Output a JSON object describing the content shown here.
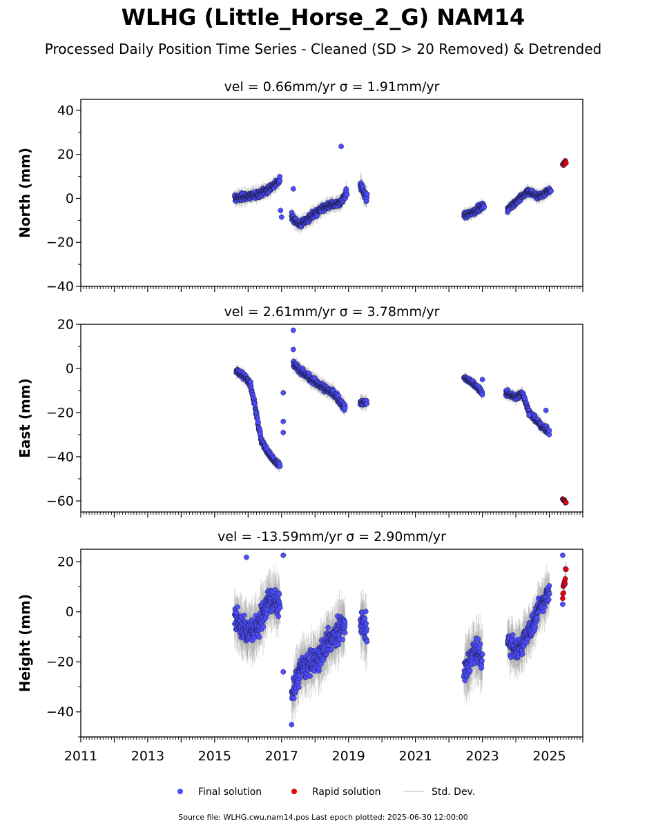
{
  "title": "WLHG (Little_Horse_2_G) NAM14",
  "subtitle": "Processed Daily Position Time Series - Cleaned (SD > 20 Removed) & Detrended",
  "legend": {
    "final": "Final solution",
    "rapid": "Rapid solution",
    "std": "Std. Dev."
  },
  "footer": "Source file: WLHG.cwu.nam14.pos  Last epoch plotted: 2025-06-30 12:00:00",
  "colors": {
    "final": "#4d4dff",
    "rapid": "#e8000b",
    "std": "#9a9a9a"
  },
  "chart_data": [
    {
      "type": "scatter",
      "panel_title": "vel = 0.66mm/yr   σ = 1.91mm/yr",
      "ylabel": "North (mm)",
      "xlim": [
        2011,
        2026
      ],
      "ylim": [
        -40,
        45
      ],
      "yticks": [
        -40,
        -20,
        0,
        20,
        40
      ],
      "xticks": [
        2011,
        2013,
        2015,
        2017,
        2019,
        2021,
        2023,
        2025
      ],
      "x_tick_labels_shown": false,
      "segments": [
        {
          "x": [
            2015.6,
            2016.0,
            2016.3,
            2016.6,
            2016.95
          ],
          "y": [
            0,
            1,
            2,
            4,
            8
          ],
          "noise": 1.5
        },
        {
          "x": [
            2017.3,
            2017.55,
            2017.9,
            2018.3,
            2018.75,
            2018.95
          ],
          "y": [
            -8,
            -12,
            -8,
            -4,
            -2,
            3
          ],
          "noise": 1.5
        },
        {
          "x": [
            2019.35,
            2019.55
          ],
          "y": [
            6,
            0
          ],
          "noise": 2
        },
        {
          "x": [
            2022.45,
            2022.75,
            2023.05
          ],
          "y": [
            -8,
            -6,
            -3
          ],
          "noise": 1.2
        },
        {
          "x": [
            2023.75,
            2024.05,
            2024.35,
            2024.7,
            2025.05
          ],
          "y": [
            -5,
            -1,
            3,
            1,
            4
          ],
          "noise": 1.2
        }
      ],
      "outliers": [
        {
          "x": 2018.78,
          "y": 23.6
        },
        {
          "x": 2017.35,
          "y": 4.3
        },
        {
          "x": 2017.0,
          "y": -8.5
        },
        {
          "x": 2016.97,
          "y": -5.5
        }
      ],
      "rapid": {
        "x": [
          2025.4,
          2025.5
        ],
        "y": [
          15.5,
          16.8
        ],
        "noise": 0.8
      }
    },
    {
      "type": "scatter",
      "panel_title": "vel = 2.61mm/yr   σ = 3.78mm/yr",
      "ylabel": "East (mm)",
      "xlim": [
        2011,
        2026
      ],
      "ylim": [
        -65,
        20
      ],
      "yticks": [
        -60,
        -40,
        -20,
        0,
        20
      ],
      "xticks": [
        2011,
        2013,
        2015,
        2017,
        2019,
        2021,
        2023,
        2025
      ],
      "x_tick_labels_shown": false,
      "segments": [
        {
          "x": [
            2015.65,
            2015.9,
            2016.05,
            2016.2,
            2016.4,
            2016.7,
            2016.95
          ],
          "y": [
            -1,
            -4,
            -6,
            -17,
            -33,
            -40,
            -44
          ],
          "noise": 1.2
        },
        {
          "x": [
            2017.35,
            2017.5,
            2017.8,
            2018.2,
            2018.6,
            2018.9
          ],
          "y": [
            2,
            0,
            -4,
            -8,
            -12,
            -18
          ],
          "noise": 1.5
        },
        {
          "x": [
            2019.35,
            2019.55
          ],
          "y": [
            -15,
            -16
          ],
          "noise": 1.5
        },
        {
          "x": [
            2022.45,
            2022.75,
            2023.0
          ],
          "y": [
            -4,
            -7,
            -11
          ],
          "noise": 1.0
        },
        {
          "x": [
            2023.7,
            2024.0,
            2024.2,
            2024.4,
            2024.7,
            2025.0
          ],
          "y": [
            -11,
            -13,
            -11,
            -20,
            -25,
            -29
          ],
          "noise": 1.2
        }
      ],
      "outliers": [
        {
          "x": 2017.35,
          "y": 17.3
        },
        {
          "x": 2017.35,
          "y": 8.6
        },
        {
          "x": 2017.05,
          "y": -11
        },
        {
          "x": 2017.05,
          "y": -24
        },
        {
          "x": 2017.05,
          "y": -29
        },
        {
          "x": 2024.9,
          "y": -19
        },
        {
          "x": 2024.4,
          "y": -21
        },
        {
          "x": 2023.0,
          "y": -5
        }
      ],
      "rapid": {
        "x": [
          2025.4,
          2025.5
        ],
        "y": [
          -59,
          -61
        ],
        "noise": 0.8
      }
    },
    {
      "type": "scatter",
      "panel_title": "vel = -13.59mm/yr   σ = 2.90mm/yr",
      "ylabel": "Height (mm)",
      "xlim": [
        2011,
        2026
      ],
      "ylim": [
        -50,
        25
      ],
      "yticks": [
        -40,
        -20,
        0,
        20
      ],
      "xticks": [
        2011,
        2013,
        2015,
        2017,
        2019,
        2021,
        2023,
        2025
      ],
      "x_tick_labels_shown": true,
      "segments": [
        {
          "x": [
            2015.6,
            2016.0,
            2016.3,
            2016.6,
            2016.95
          ],
          "y": [
            -3,
            -8,
            -6,
            5,
            3
          ],
          "noise": 4.5
        },
        {
          "x": [
            2017.3,
            2017.6,
            2018.0,
            2018.4,
            2018.9
          ],
          "y": [
            -33,
            -22,
            -20,
            -12,
            -5
          ],
          "noise": 4.5
        },
        {
          "x": [
            2019.35,
            2019.55
          ],
          "y": [
            -3,
            -6
          ],
          "noise": 5
        },
        {
          "x": [
            2022.45,
            2022.75,
            2023.0
          ],
          "y": [
            -25,
            -15,
            -18
          ],
          "noise": 5
        },
        {
          "x": [
            2023.75,
            2024.05,
            2024.4,
            2024.7,
            2025.0
          ],
          "y": [
            -12,
            -15,
            -8,
            2,
            8
          ],
          "noise": 4
        }
      ],
      "outliers": [
        {
          "x": 2015.95,
          "y": 21.8
        },
        {
          "x": 2017.05,
          "y": 22.6
        },
        {
          "x": 2017.3,
          "y": -45.1
        },
        {
          "x": 2017.05,
          "y": -24
        },
        {
          "x": 2025.4,
          "y": 22.6
        },
        {
          "x": 2025.4,
          "y": 3
        }
      ],
      "rapid": {
        "x": [
          2025.4,
          2025.5
        ],
        "y": [
          7,
          17
        ],
        "noise": 3
      }
    }
  ]
}
